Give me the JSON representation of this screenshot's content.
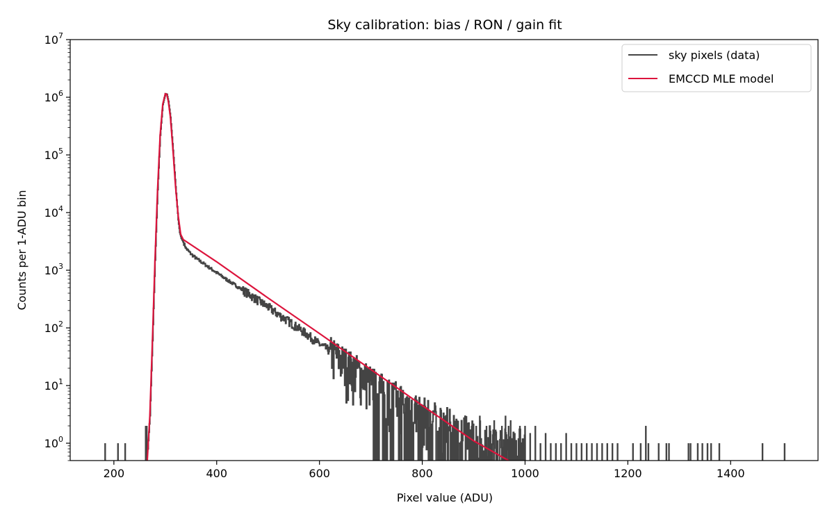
{
  "chart_data": {
    "type": "line",
    "title": "Sky calibration: bias / RON / gain fit",
    "xlabel": "Pixel value (ADU)",
    "ylabel": "Counts per 1-ADU bin",
    "xlim": [
      115,
      1570
    ],
    "ylim": [
      0.5,
      10000000
    ],
    "yscale": "log",
    "grid": false,
    "legend_position": "top-right",
    "x_ticks": [
      200,
      400,
      600,
      800,
      1000,
      1200,
      1400
    ],
    "y_ticks": [
      {
        "value": 1,
        "exp": "0"
      },
      {
        "value": 10,
        "exp": "1"
      },
      {
        "value": 100,
        "exp": "2"
      },
      {
        "value": 1000,
        "exp": "3"
      },
      {
        "value": 10000,
        "exp": "4"
      },
      {
        "value": 100000,
        "exp": "5"
      },
      {
        "value": 1000000,
        "exp": "6"
      },
      {
        "value": 10000000,
        "exp": "7"
      }
    ],
    "tick_base": "10",
    "series": [
      {
        "name": "sky pixels (data)",
        "color": "#444444",
        "style": "steps",
        "x": [
          266,
          270,
          275,
          280,
          285,
          290,
          295,
          300,
          303,
          306,
          310,
          315,
          320,
          325,
          328,
          331,
          334,
          340,
          350,
          360,
          380,
          400,
          420,
          440,
          460,
          480,
          500,
          520,
          540,
          560,
          580,
          600,
          620,
          640,
          660,
          680,
          700,
          720,
          740,
          760,
          780,
          800,
          820,
          840,
          860,
          880,
          900,
          920,
          940,
          960,
          980,
          1000
        ],
        "y": [
          0.8,
          3,
          60,
          1500,
          25000,
          220000,
          750000,
          1150000,
          1120000,
          850000,
          450000,
          120000,
          28000,
          7500,
          4500,
          3600,
          3200,
          2400,
          1900,
          1600,
          1200,
          900,
          680,
          520,
          400,
          300,
          230,
          170,
          130,
          97,
          72,
          52,
          40,
          30,
          22,
          17,
          12,
          9,
          7,
          6,
          4.5,
          3.5,
          3,
          2.5,
          2,
          1.7,
          1.5,
          1.3,
          1.1,
          1,
          1,
          1
        ]
      },
      {
        "name": "EMCCD MLE model",
        "color": "#dc143c",
        "style": "line",
        "x": [
          265,
          270,
          275,
          280,
          285,
          290,
          295,
          300,
          303,
          306,
          310,
          315,
          320,
          325,
          330,
          335,
          400,
          500,
          600,
          700,
          800,
          900,
          968
        ],
        "y": [
          0.5,
          3,
          60,
          1500,
          25000,
          220000,
          750000,
          1150000,
          1120000,
          850000,
          450000,
          120000,
          28000,
          9000,
          4200,
          3400,
          1400,
          330,
          80,
          19,
          4.5,
          1.1,
          0.5
        ]
      }
    ],
    "sparse_outliers": {
      "x": [
        183,
        208,
        222,
        262,
        264,
        905,
        912,
        925,
        940,
        955,
        962,
        968,
        972,
        980,
        990,
        1000,
        1010,
        1020,
        1030,
        1040,
        1050,
        1060,
        1070,
        1080,
        1090,
        1100,
        1110,
        1120,
        1130,
        1140,
        1150,
        1160,
        1170,
        1180,
        1210,
        1225,
        1235,
        1240,
        1260,
        1275,
        1280,
        1318,
        1322,
        1336,
        1345,
        1355,
        1362,
        1378,
        1462,
        1505
      ],
      "y": [
        1,
        1,
        1,
        2,
        2,
        2,
        3,
        2,
        2.5,
        2,
        3,
        2,
        2.5,
        1.5,
        2,
        2,
        1.5,
        2,
        1,
        1.5,
        1,
        1,
        1,
        1.5,
        1,
        1,
        1,
        1,
        1,
        1,
        1,
        1,
        1,
        1,
        1,
        1,
        2,
        1,
        1,
        1,
        1,
        1,
        1,
        1,
        1,
        1,
        1,
        1,
        1,
        1
      ]
    }
  }
}
